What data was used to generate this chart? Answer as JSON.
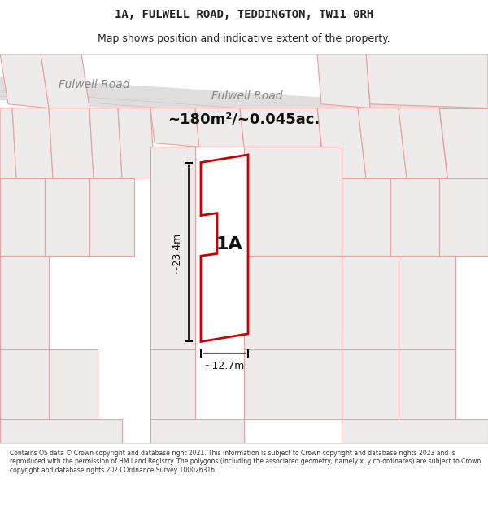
{
  "title_line1": "1A, FULWELL ROAD, TEDDINGTON, TW11 0RH",
  "title_line2": "Map shows position and indicative extent of the property.",
  "area_text": "~180m²/~0.045ac.",
  "label_1a": "1A",
  "dim_height": "~23.4m",
  "dim_width": "~12.7m",
  "road_label_left": "Fulwell Road",
  "road_label_right": "Fulwell Road",
  "footer_text": "Contains OS data © Crown copyright and database right 2021. This information is subject to Crown copyright and database rights 2023 and is reproduced with the permission of HM Land Registry. The polygons (including the associated geometry, namely x, y co-ordinates) are subject to Crown copyright and database rights 2023 Ordnance Survey 100026316.",
  "bg_color": "#f0f0f0",
  "map_bg": "#f2f0ef",
  "road_color": "#e8e6e5",
  "plot_line_color": "#e8a0a0",
  "highlight_color": "#cc0000",
  "highlight_fill": "#ffffff",
  "text_color": "#222222",
  "footer_bg": "#ffffff",
  "road_stripe_color": "#d0cdcc"
}
